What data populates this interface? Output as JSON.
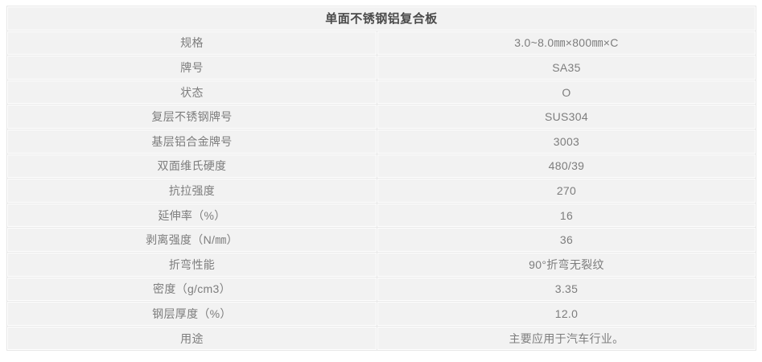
{
  "table": {
    "title": "单面不锈钢铝复合板",
    "rows": [
      {
        "label": "规格",
        "value": "3.0~8.0㎜×800㎜×C"
      },
      {
        "label": "牌号",
        "value": "SA35"
      },
      {
        "label": "状态",
        "value": "O"
      },
      {
        "label": "复层不锈钢牌号",
        "value": "SUS304"
      },
      {
        "label": "基层铝合金牌号",
        "value": "3003"
      },
      {
        "label": "双面维氏硬度",
        "value": "480/39"
      },
      {
        "label": "抗拉强度",
        "value": "270"
      },
      {
        "label": "延伸率（%）",
        "value": "16"
      },
      {
        "label": "剥离强度（N/㎜）",
        "value": "36"
      },
      {
        "label": "折弯性能",
        "value": "90°折弯无裂纹"
      },
      {
        "label": "密度（g/cm3）",
        "value": "3.35"
      },
      {
        "label": "钢层厚度（%）",
        "value": "12.0"
      },
      {
        "label": "用途",
        "value": "主要应用于汽车行业。"
      }
    ]
  },
  "colors": {
    "page_bg": "#ffffff",
    "cell_bg": "#f2f2f2",
    "grid_line": "#ffffff",
    "grid_gap_line": "#e7e7e7",
    "title_text": "#4a4a4a",
    "body_text": "#7d7d7d"
  }
}
